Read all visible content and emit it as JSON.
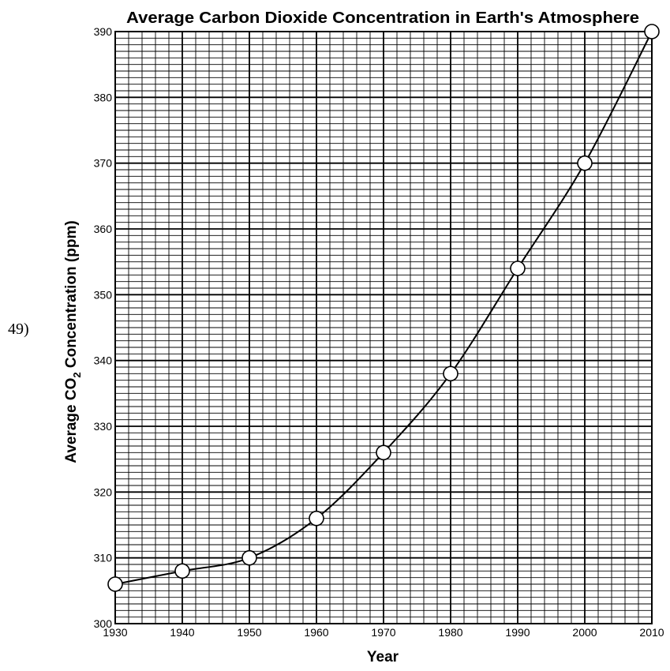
{
  "question_number": "49)",
  "chart_data": {
    "type": "line",
    "title": "Average Carbon Dioxide Concentration in Earth's Atmosphere",
    "xlabel": "Year",
    "ylabel_main": "Average CO",
    "ylabel_sub": "2",
    "ylabel_tail": " Concentration (ppm)",
    "xlim": [
      1930,
      2010
    ],
    "ylim": [
      300,
      390
    ],
    "x_ticks": [
      1930,
      1940,
      1950,
      1960,
      1970,
      1980,
      1990,
      2000,
      2010
    ],
    "y_ticks": [
      300,
      310,
      320,
      330,
      340,
      350,
      360,
      370,
      380,
      390
    ],
    "grid": true,
    "marker": "open-circle",
    "series": [
      {
        "x": [
          1930,
          1940,
          1950,
          1960,
          1970,
          1980,
          1990,
          2000,
          2010
        ],
        "y": [
          306,
          308,
          310,
          316,
          326,
          338,
          354,
          370,
          390
        ]
      }
    ]
  }
}
